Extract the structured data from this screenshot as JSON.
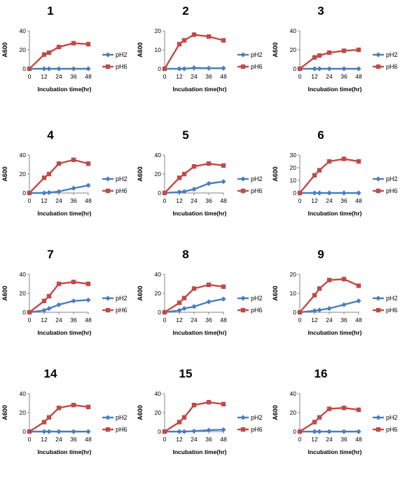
{
  "colors": {
    "pH2": "#4a7ebb",
    "pH6": "#be4b48",
    "axis": "#868686"
  },
  "chart_data": [
    {
      "type": "line",
      "title": "1",
      "xlabel": "Incubation time(hr)",
      "ylabel": "A600",
      "x": [
        0,
        12,
        16,
        24,
        36,
        48
      ],
      "ylim": [
        0,
        40
      ],
      "yticks": [
        0,
        20,
        40
      ],
      "xticks": [
        0,
        12,
        24,
        36,
        48
      ],
      "series": [
        {
          "name": "pH2",
          "values": [
            0,
            0,
            0,
            0,
            0,
            0
          ]
        },
        {
          "name": "pH6",
          "values": [
            0,
            15,
            17,
            23,
            27,
            26
          ]
        }
      ]
    },
    {
      "type": "line",
      "title": "2",
      "xlabel": "Incubation time(hr)",
      "ylabel": "A600",
      "x": [
        0,
        12,
        16,
        24,
        36,
        48
      ],
      "ylim": [
        0,
        20
      ],
      "yticks": [
        0,
        10,
        20
      ],
      "xticks": [
        0,
        12,
        24,
        36,
        48
      ],
      "series": [
        {
          "name": "pH2",
          "values": [
            0,
            0,
            0,
            0.5,
            0.3,
            0.3
          ]
        },
        {
          "name": "pH6",
          "values": [
            0,
            13,
            15,
            18,
            17,
            15
          ]
        }
      ]
    },
    {
      "type": "line",
      "title": "3",
      "xlabel": "Incubation time(hr)",
      "ylabel": "A600",
      "x": [
        0,
        12,
        16,
        24,
        36,
        48
      ],
      "ylim": [
        0,
        40
      ],
      "yticks": [
        0,
        20,
        40
      ],
      "xticks": [
        0,
        12,
        24,
        36,
        48
      ],
      "series": [
        {
          "name": "pH2",
          "values": [
            0,
            0,
            0,
            0,
            0,
            0
          ]
        },
        {
          "name": "pH6",
          "values": [
            0,
            12,
            14,
            17,
            19,
            20
          ]
        }
      ]
    },
    {
      "type": "line",
      "title": "4",
      "xlabel": "Incubation time(hr)",
      "ylabel": "A600",
      "x": [
        0,
        12,
        16,
        24,
        36,
        48
      ],
      "ylim": [
        0,
        40
      ],
      "yticks": [
        0,
        20,
        40
      ],
      "xticks": [
        0,
        12,
        24,
        36,
        48
      ],
      "series": [
        {
          "name": "pH2",
          "values": [
            0,
            0,
            0.5,
            1.5,
            5,
            8
          ]
        },
        {
          "name": "pH6",
          "values": [
            0,
            16,
            20,
            31,
            35,
            31
          ]
        }
      ]
    },
    {
      "type": "line",
      "title": "5",
      "xlabel": "Incubation time(hr)",
      "ylabel": "A600",
      "x": [
        0,
        12,
        16,
        24,
        36,
        48
      ],
      "ylim": [
        0,
        40
      ],
      "yticks": [
        0,
        20,
        40
      ],
      "xticks": [
        0,
        12,
        24,
        36,
        48
      ],
      "series": [
        {
          "name": "pH2",
          "values": [
            0,
            1,
            1.5,
            4,
            10,
            12
          ]
        },
        {
          "name": "pH6",
          "values": [
            0,
            16,
            20,
            28,
            31,
            29
          ]
        }
      ]
    },
    {
      "type": "line",
      "title": "6",
      "xlabel": "Incubation time(hr)",
      "ylabel": "A600",
      "x": [
        0,
        12,
        16,
        24,
        36,
        48
      ],
      "ylim": [
        0,
        30
      ],
      "yticks": [
        0,
        10,
        20,
        30
      ],
      "xticks": [
        0,
        12,
        24,
        36,
        48
      ],
      "series": [
        {
          "name": "pH2",
          "values": [
            0,
            0,
            0,
            0,
            0,
            0
          ]
        },
        {
          "name": "pH6",
          "values": [
            0,
            14,
            18,
            25,
            27,
            25
          ]
        }
      ]
    },
    {
      "type": "line",
      "title": "7",
      "xlabel": "Incubation time(hr)",
      "ylabel": "A600",
      "x": [
        0,
        12,
        16,
        24,
        36,
        48
      ],
      "ylim": [
        0,
        40
      ],
      "yticks": [
        0,
        20,
        40
      ],
      "xticks": [
        0,
        12,
        24,
        36,
        48
      ],
      "series": [
        {
          "name": "pH2",
          "values": [
            0,
            2,
            4,
            8,
            12,
            13
          ]
        },
        {
          "name": "pH6",
          "values": [
            0,
            12,
            17,
            30,
            32,
            30
          ]
        }
      ]
    },
    {
      "type": "line",
      "title": "8",
      "xlabel": "Incubation time(hr)",
      "ylabel": "A600",
      "x": [
        0,
        12,
        16,
        24,
        36,
        48
      ],
      "ylim": [
        0,
        40
      ],
      "yticks": [
        0,
        20,
        40
      ],
      "xticks": [
        0,
        12,
        24,
        36,
        48
      ],
      "series": [
        {
          "name": "pH2",
          "values": [
            0,
            2,
            4,
            6,
            11,
            14
          ]
        },
        {
          "name": "pH6",
          "values": [
            0,
            10,
            15,
            25,
            29,
            27
          ]
        }
      ]
    },
    {
      "type": "line",
      "title": "9",
      "xlabel": "Incubation time(hr)",
      "ylabel": "A600",
      "x": [
        0,
        12,
        16,
        24,
        36,
        48
      ],
      "ylim": [
        0,
        20
      ],
      "yticks": [
        0,
        10,
        20
      ],
      "xticks": [
        0,
        12,
        24,
        36,
        48
      ],
      "series": [
        {
          "name": "pH2",
          "values": [
            0,
            0.8,
            1.2,
            2,
            4,
            6
          ]
        },
        {
          "name": "pH6",
          "values": [
            0,
            9,
            12.5,
            17,
            17.5,
            14
          ]
        }
      ]
    },
    {
      "type": "line",
      "title": "14",
      "xlabel": "Incubation time(hr)",
      "ylabel": "A600",
      "x": [
        0,
        12,
        16,
        24,
        36,
        48
      ],
      "ylim": [
        0,
        40
      ],
      "yticks": [
        0,
        20,
        40
      ],
      "xticks": [
        0,
        12,
        24,
        36,
        48
      ],
      "series": [
        {
          "name": "pH2",
          "values": [
            0,
            0,
            0,
            0,
            0,
            0
          ]
        },
        {
          "name": "pH6",
          "values": [
            0,
            10,
            15,
            25,
            28,
            26
          ]
        }
      ]
    },
    {
      "type": "line",
      "title": "15",
      "xlabel": "Incubation time(hr)",
      "ylabel": "A600",
      "x": [
        0,
        12,
        16,
        24,
        36,
        48
      ],
      "ylim": [
        0,
        40
      ],
      "yticks": [
        0,
        20,
        40
      ],
      "xticks": [
        0,
        12,
        24,
        36,
        48
      ],
      "series": [
        {
          "name": "pH2",
          "values": [
            0,
            0,
            0,
            0.5,
            1.5,
            2
          ]
        },
        {
          "name": "pH6",
          "values": [
            0,
            10,
            15,
            28,
            31,
            29
          ]
        }
      ]
    },
    {
      "type": "line",
      "title": "16",
      "xlabel": "Incubation time(hr)",
      "ylabel": "A600",
      "x": [
        0,
        12,
        16,
        24,
        36,
        48
      ],
      "ylim": [
        0,
        40
      ],
      "yticks": [
        0,
        20,
        40
      ],
      "xticks": [
        0,
        12,
        24,
        36,
        48
      ],
      "series": [
        {
          "name": "pH2",
          "values": [
            0,
            0,
            0,
            0,
            0,
            0
          ]
        },
        {
          "name": "pH6",
          "values": [
            0,
            10,
            15,
            24,
            25,
            23
          ]
        }
      ]
    }
  ]
}
